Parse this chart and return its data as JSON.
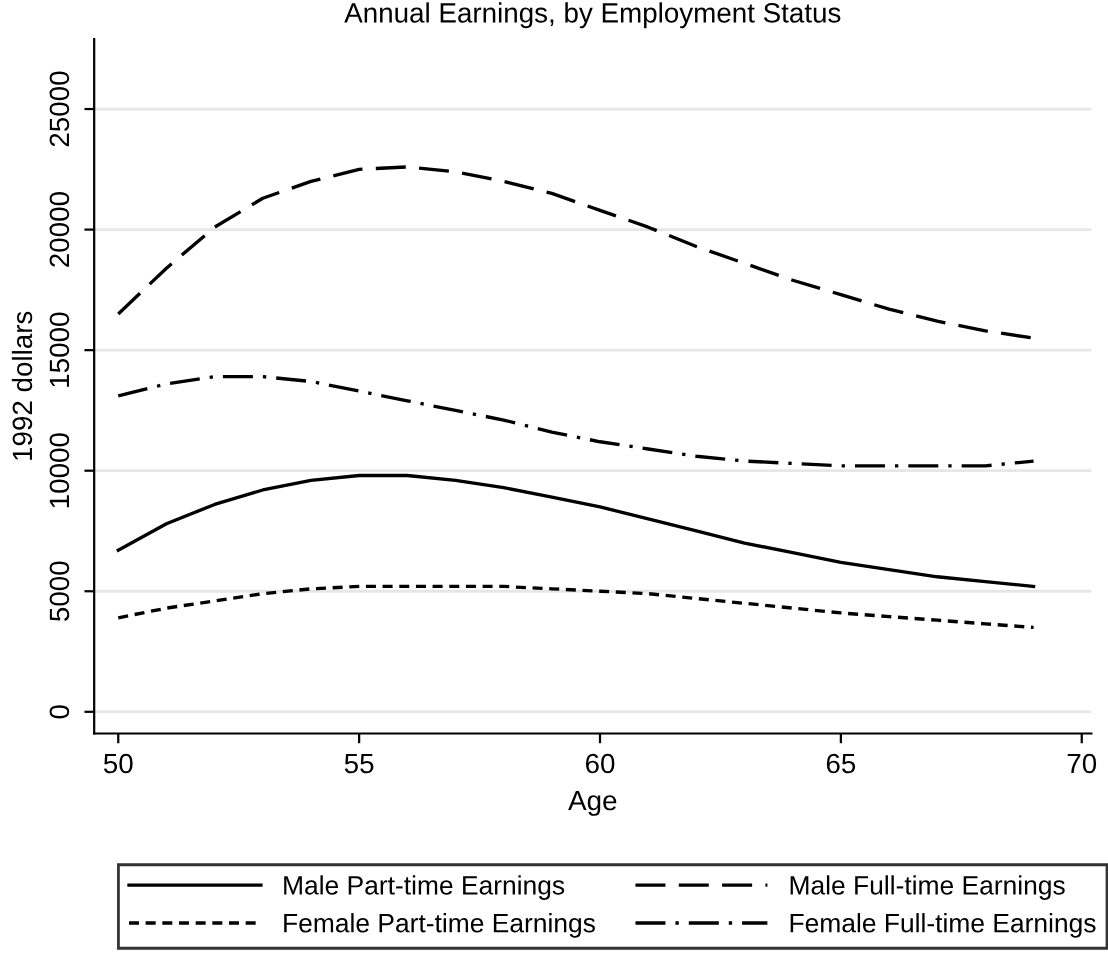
{
  "chart_data": {
    "type": "line",
    "title": "Annual Earnings, by Employment Status",
    "xlabel": "Age",
    "ylabel": "1992 dollars",
    "x": [
      50,
      51,
      52,
      53,
      54,
      55,
      56,
      57,
      58,
      59,
      60,
      61,
      62,
      63,
      64,
      65,
      66,
      67,
      68,
      69
    ],
    "series": [
      {
        "name": "Male Part-time Earnings",
        "color": "#000000",
        "line_style": "solid",
        "values": [
          6700,
          7800,
          8600,
          9200,
          9600,
          9800,
          9800,
          9600,
          9300,
          8900,
          8500,
          8000,
          7500,
          7000,
          6600,
          6200,
          5900,
          5600,
          5400,
          5200
        ]
      },
      {
        "name": "Male Full-time Earnings",
        "color": "#000000",
        "line_style": "longdash",
        "values": [
          16500,
          18400,
          20100,
          21300,
          22000,
          22500,
          22600,
          22400,
          22000,
          21500,
          20800,
          20100,
          19300,
          18600,
          17900,
          17300,
          16700,
          16200,
          15800,
          15500
        ]
      },
      {
        "name": "Female Part-time Earnings",
        "color": "#000000",
        "line_style": "dashed",
        "values": [
          3900,
          4300,
          4600,
          4900,
          5100,
          5200,
          5200,
          5200,
          5200,
          5100,
          5000,
          4900,
          4700,
          4500,
          4300,
          4100,
          3950,
          3800,
          3650,
          3500
        ]
      },
      {
        "name": "Female Full-time Earnings",
        "color": "#000000",
        "line_style": "dashdot",
        "values": [
          13100,
          13600,
          13900,
          13900,
          13700,
          13300,
          12900,
          12500,
          12100,
          11600,
          11200,
          10900,
          10600,
          10400,
          10300,
          10200,
          10200,
          10200,
          10200,
          10400
        ]
      }
    ],
    "xlim": [
      49.5,
      70.2
    ],
    "xticks": [
      50,
      55,
      60,
      65,
      70
    ],
    "ylim": [
      -900,
      27900
    ],
    "yticks": [
      0,
      5000,
      10000,
      15000,
      20000,
      25000
    ],
    "grid": "y",
    "legend": "bottom",
    "marker": "none"
  }
}
